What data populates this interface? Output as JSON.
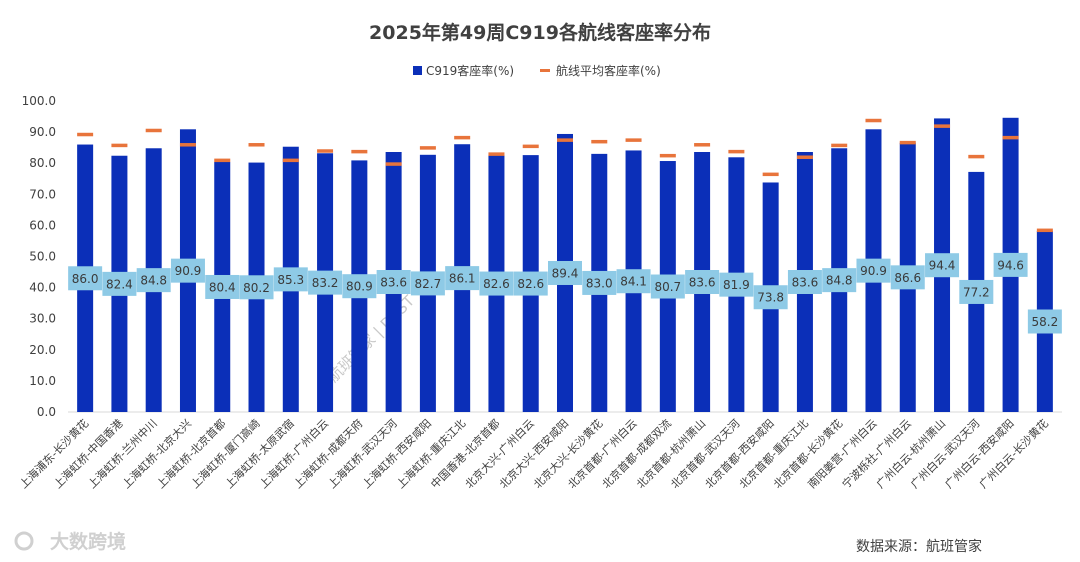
{
  "chart_data": {
    "type": "bar",
    "title": "2025年第49周C919各航线客座率分布",
    "ylim": [
      0,
      100
    ],
    "yticks": [
      "0.0",
      "10.0",
      "20.0",
      "30.0",
      "40.0",
      "50.0",
      "60.0",
      "70.0",
      "80.0",
      "90.0",
      "100.0"
    ],
    "grid": false,
    "legend_position": "top",
    "categories": [
      "上海浦东-长沙黄花",
      "上海虹桥-中国香港",
      "上海虹桥-兰州中川",
      "上海虹桥-北京大兴",
      "上海虹桥-北京首都",
      "上海虹桥-厦门高崎",
      "上海虹桥-太原武宿",
      "上海虹桥-广州白云",
      "上海虹桥-成都天府",
      "上海虹桥-武汉天河",
      "上海虹桥-西安咸阳",
      "上海虹桥-重庆江北",
      "中国香港-北京首都",
      "北京大兴-广州白云",
      "北京大兴-西安咸阳",
      "北京大兴-长沙黄花",
      "北京首都-广州白云",
      "北京首都-成都双流",
      "北京首都-杭州萧山",
      "北京首都-武汉天河",
      "北京首都-西安咸阳",
      "北京首都-重庆江北",
      "北京首都-长沙黄花",
      "南阳姜营-广州白云",
      "宁波栎社-广州白云",
      "广州白云-杭州萧山",
      "广州白云-武汉天河",
      "广州白云-西安咸阳",
      "广州白云-长沙黄花"
    ],
    "series": [
      {
        "name": "C919客座率(%)",
        "type": "bar",
        "color": "#0b2fb8",
        "values": [
          86.0,
          82.4,
          84.8,
          90.9,
          80.4,
          80.2,
          85.3,
          83.2,
          80.9,
          83.6,
          82.7,
          86.1,
          82.6,
          82.6,
          89.4,
          83.0,
          84.1,
          80.7,
          83.6,
          81.9,
          73.8,
          83.6,
          84.8,
          90.9,
          86.6,
          94.4,
          77.2,
          94.6,
          58.2
        ],
        "labels": [
          "86.0",
          "82.4",
          "84.8",
          "90.9",
          "80.4",
          "80.2",
          "85.3",
          "83.2",
          "80.9",
          "83.6",
          "82.7",
          "86.1",
          "82.6",
          "82.6",
          "89.4",
          "83.0",
          "84.1",
          "80.7",
          "83.6",
          "81.9",
          "73.8",
          "83.6",
          "84.8",
          "90.9",
          "86.6",
          "94.4",
          "77.2",
          "94.6",
          "58.2"
        ]
      },
      {
        "name": "航线平均客座率(%)",
        "type": "marker-dash",
        "color": "#e8743b",
        "values": [
          89.3,
          85.8,
          90.6,
          86.0,
          81.0,
          86.0,
          81.0,
          84.0,
          83.8,
          79.8,
          85.0,
          88.3,
          83.0,
          85.5,
          87.5,
          87.0,
          87.5,
          82.5,
          86.0,
          83.8,
          76.5,
          82.0,
          85.8,
          93.8,
          86.7,
          92.0,
          82.2,
          88.3,
          58.5
        ]
      }
    ],
    "label_box_color": "#8ecae6"
  },
  "source": "数据来源：航班管家",
  "watermark_center": "航班管家 | DAST",
  "watermark_logo": "大数跨境"
}
